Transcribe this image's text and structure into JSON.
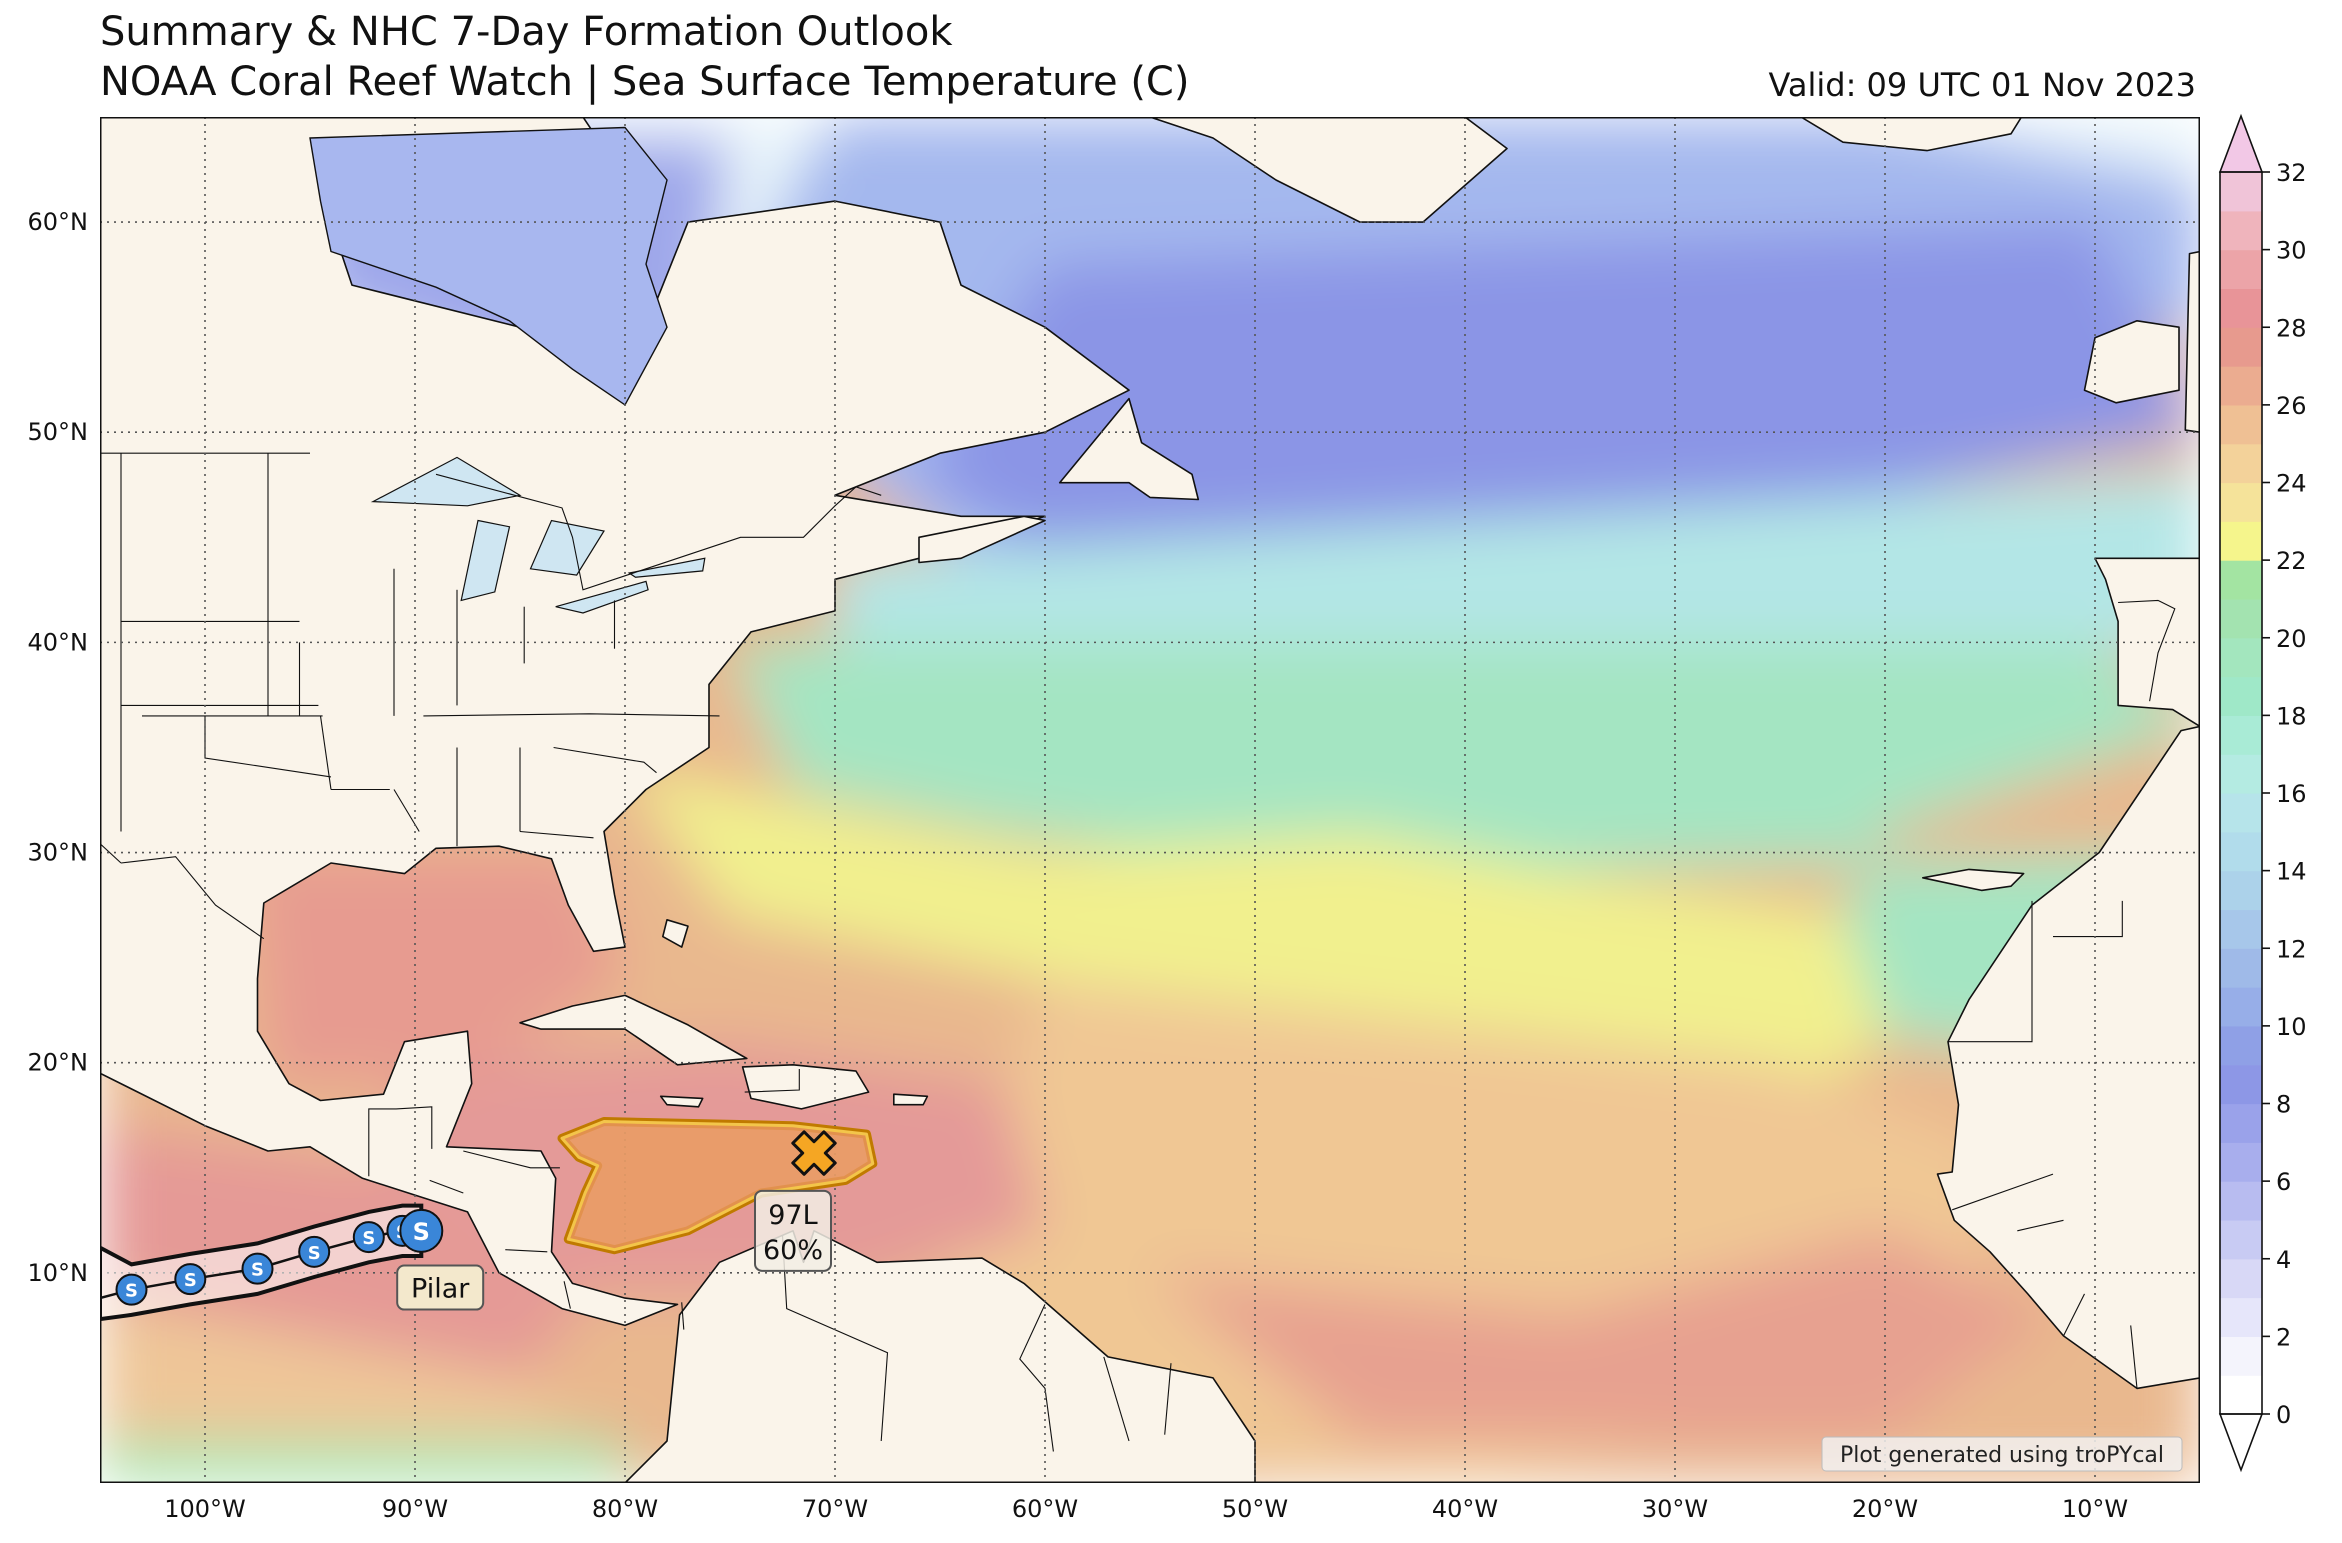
{
  "header": {
    "title_line1": "Summary & NHC 7-Day Formation Outlook",
    "title_line2": "NOAA Coral Reef Watch | Sea Surface Temperature (C)",
    "valid": "Valid: 09 UTC 01 Nov 2023"
  },
  "map": {
    "lon_range": [
      -105,
      -5
    ],
    "lat_range": [
      0,
      65
    ],
    "lon_ticks": [
      {
        "value": -100,
        "label": "100°W"
      },
      {
        "value": -90,
        "label": "90°W"
      },
      {
        "value": -80,
        "label": "80°W"
      },
      {
        "value": -70,
        "label": "70°W"
      },
      {
        "value": -60,
        "label": "60°W"
      },
      {
        "value": -50,
        "label": "50°W"
      },
      {
        "value": -40,
        "label": "40°W"
      },
      {
        "value": -30,
        "label": "30°W"
      },
      {
        "value": -20,
        "label": "20°W"
      },
      {
        "value": -10,
        "label": "10°W"
      }
    ],
    "lat_ticks": [
      {
        "value": 10,
        "label": "10°N"
      },
      {
        "value": 20,
        "label": "20°N"
      },
      {
        "value": 30,
        "label": "30°N"
      },
      {
        "value": 40,
        "label": "40°N"
      },
      {
        "value": 50,
        "label": "50°N"
      },
      {
        "value": 60,
        "label": "60°N"
      }
    ],
    "grid": "dotted",
    "land_color": "#faf4ea",
    "credit": "Plot generated using troPYcal"
  },
  "outlook": {
    "id": "97L",
    "probability": "60%",
    "marker": "x-marker-icon",
    "center": [
      -71.0,
      15.7
    ],
    "area_color": "#e8955a",
    "area_outline": "#c07a00"
  },
  "storm": {
    "name": "Pilar",
    "symbol": "S",
    "marker_color": "#3a86d8",
    "track": [
      {
        "lon": -103.5,
        "lat": 9.2
      },
      {
        "lon": -100.7,
        "lat": 9.7
      },
      {
        "lon": -97.5,
        "lat": 10.2
      },
      {
        "lon": -94.8,
        "lat": 11.0
      },
      {
        "lon": -92.2,
        "lat": 11.7
      },
      {
        "lon": -90.6,
        "lat": 12.0
      },
      {
        "lon": -89.7,
        "lat": 12.0
      }
    ]
  },
  "colorbar": {
    "min": 0,
    "max": 32,
    "extend": "both",
    "tick_values": [
      0,
      2,
      4,
      6,
      8,
      10,
      12,
      14,
      16,
      18,
      20,
      22,
      24,
      26,
      28,
      30,
      32
    ],
    "colors": [
      "#ffffff",
      "#f4f4fc",
      "#e6e6fa",
      "#d8d8f6",
      "#c8cbf3",
      "#b8bcf0",
      "#a8aeed",
      "#9aa2ea",
      "#8d97e6",
      "#8fa0e6",
      "#97aee8",
      "#9fbae8",
      "#a7c7ea",
      "#acd2ea",
      "#b1dceb",
      "#b6e4ea",
      "#b4ebe2",
      "#a9ebd6",
      "#9fe8c8",
      "#a3e6be",
      "#a3e3b0",
      "#a3e4a2",
      "#f5f58c",
      "#f5e39a",
      "#f3d29a",
      "#efc094",
      "#ebac90",
      "#e79a8e",
      "#e89498",
      "#eca4a8",
      "#efb4bc",
      "#f0c4d8"
    ],
    "over_color": "#f2c8e6",
    "under_color": "#ffffff"
  }
}
